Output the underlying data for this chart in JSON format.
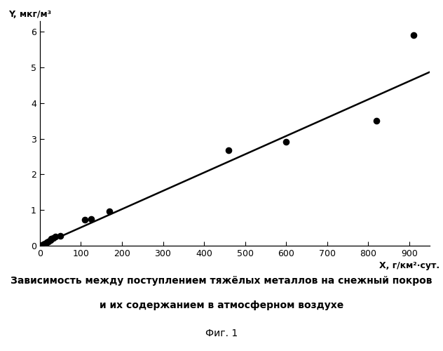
{
  "scatter_x": [
    5,
    8,
    12,
    17,
    20,
    25,
    28,
    33,
    38,
    50,
    110,
    125,
    170,
    460,
    600,
    820,
    910
  ],
  "scatter_y": [
    0.02,
    0.04,
    0.06,
    0.09,
    0.12,
    0.16,
    0.19,
    0.22,
    0.26,
    0.28,
    0.72,
    0.75,
    0.97,
    2.68,
    2.92,
    3.5,
    5.9
  ],
  "line_x": [
    0,
    950
  ],
  "line_y": [
    0.0,
    4.87
  ],
  "xlim": [
    0,
    950
  ],
  "ylim": [
    0,
    6.3
  ],
  "xticks": [
    0,
    100,
    200,
    300,
    400,
    500,
    600,
    700,
    800,
    900
  ],
  "yticks": [
    0,
    1,
    2,
    3,
    4,
    5,
    6
  ],
  "xlabel": "X, г/км²·сут.",
  "ylabel": "Y, мкг/м³",
  "caption_line1": "Зависимость между поступлением тяжёлых металлов на снежный покров",
  "caption_line2": "и их содержанием в атмосферном воздухе",
  "caption_line3": "Фиг. 1",
  "bg_color": "#ffffff",
  "line_color": "#000000",
  "scatter_color": "#000000",
  "scatter_size": 35,
  "line_width": 1.8,
  "tick_labelsize": 9,
  "caption_fontsize": 10,
  "fig_fontsize": 10
}
